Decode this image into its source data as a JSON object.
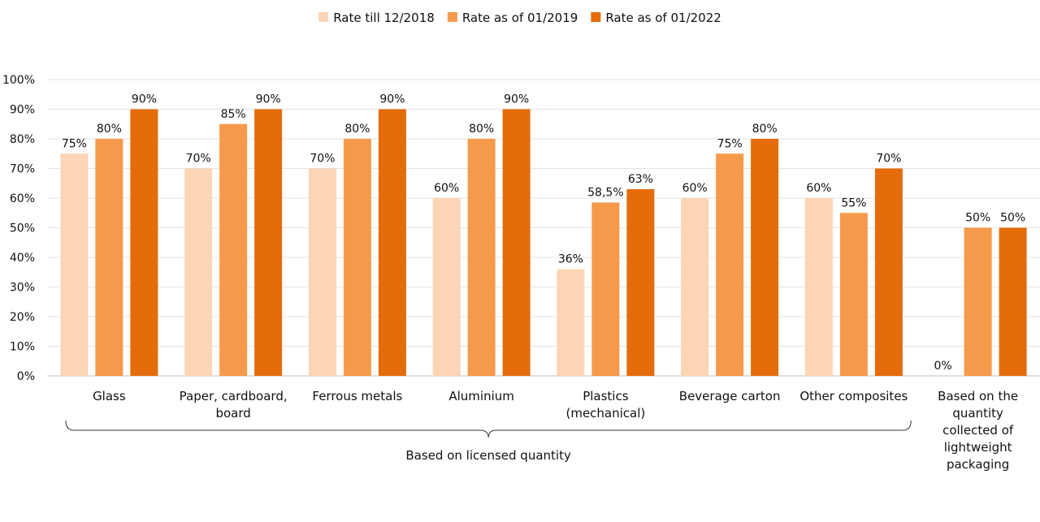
{
  "chart_data": {
    "type": "bar",
    "categories": [
      [
        "Glass"
      ],
      [
        "Paper, cardboard,",
        "board"
      ],
      [
        "Ferrous metals"
      ],
      [
        "Aluminium"
      ],
      [
        "Plastics",
        "(mechanical)"
      ],
      [
        "Beverage carton"
      ],
      [
        "Other composites"
      ],
      [
        "Based on the",
        "quantity",
        "collected of",
        "lightweight",
        "packaging"
      ]
    ],
    "series": [
      {
        "name": "Rate till 12/2018",
        "color": "#FBD5B5",
        "values": [
          75,
          70,
          70,
          60,
          36,
          60,
          60,
          0
        ],
        "labels": [
          "75%",
          "70%",
          "70%",
          "60%",
          "36%",
          "60%",
          "60%",
          "0%"
        ]
      },
      {
        "name": "Rate as of 01/2019",
        "color": "#F59A4B",
        "values": [
          80,
          85,
          80,
          80,
          58.5,
          75,
          55,
          50
        ],
        "labels": [
          "80%",
          "85%",
          "80%",
          "80%",
          "58,5%",
          "75%",
          "55%",
          "50%"
        ]
      },
      {
        "name": "Rate as of 01/2022",
        "color": "#E46C0A",
        "values": [
          90,
          90,
          90,
          90,
          63,
          80,
          70,
          50
        ],
        "labels": [
          "90%",
          "90%",
          "90%",
          "90%",
          "63%",
          "80%",
          "70%",
          "50%"
        ]
      }
    ],
    "yticks": [
      "0%",
      "10%",
      "20%",
      "30%",
      "40%",
      "50%",
      "60%",
      "70%",
      "80%",
      "90%",
      "100%"
    ],
    "ylim": [
      0,
      100
    ],
    "grid": true,
    "legend": "top-center",
    "group_annotation": {
      "text": "Based on licensed quantity",
      "first_category": 0,
      "last_category": 6
    }
  }
}
